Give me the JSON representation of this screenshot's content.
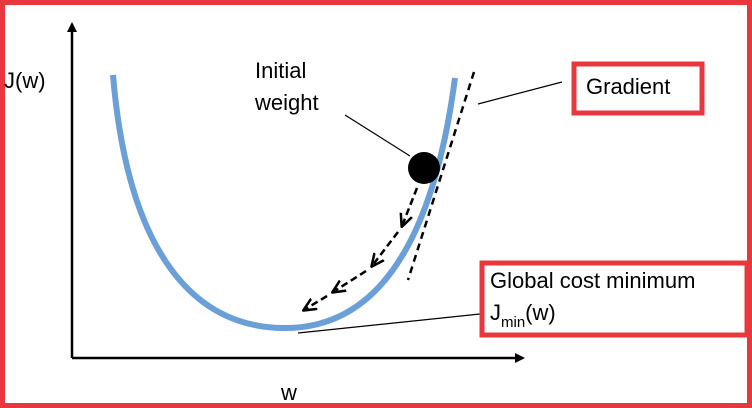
{
  "labels": {
    "y_axis": "J(w)",
    "x_axis": "w",
    "initial_weight": [
      "Initial",
      "weight"
    ],
    "gradient": "Gradient",
    "global_minimum": "Global cost minimum",
    "jmin": {
      "base": "J",
      "subscript": "min",
      "suffix": "(w)"
    }
  }
}
